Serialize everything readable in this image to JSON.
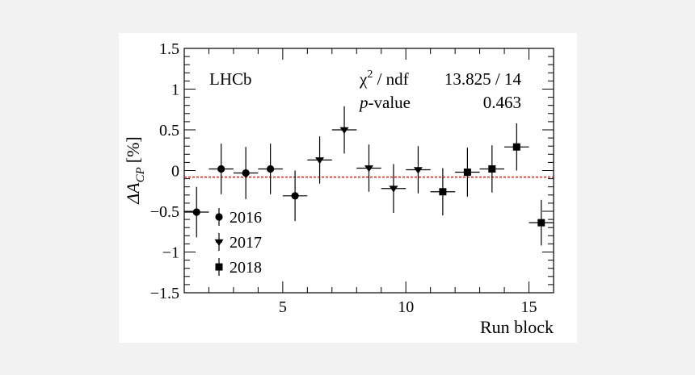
{
  "chart_data": {
    "type": "scatter",
    "title": "",
    "xlabel": "Run block",
    "ylabel": {
      "prefix": "ΔA",
      "subscript": "CP",
      "unit": "[%]"
    },
    "xlim": [
      1,
      16
    ],
    "ylim": [
      -1.5,
      1.5
    ],
    "x_ticks": [
      5,
      10,
      15
    ],
    "y_ticks": [
      -1.5,
      -1,
      -0.5,
      0,
      0.5,
      1,
      1.5
    ],
    "y_tick_labels": [
      "−1.5",
      "−1",
      "−0.5",
      "0",
      "0.5",
      "1",
      "1.5"
    ],
    "reference_line": {
      "y": -0.08,
      "style": "dashed",
      "color": "#d40000"
    },
    "series": [
      {
        "name": "2016",
        "marker": "circle",
        "x": [
          1.5,
          2.5,
          3.5,
          4.5,
          5.5
        ],
        "y": [
          -0.51,
          0.02,
          -0.03,
          0.02,
          -0.31
        ],
        "yerr": [
          0.31,
          0.31,
          0.32,
          0.31,
          0.31
        ]
      },
      {
        "name": "2017",
        "marker": "triangle-down",
        "x": [
          6.5,
          7.5,
          8.5,
          9.5,
          10.5
        ],
        "y": [
          0.13,
          0.5,
          0.03,
          -0.22,
          0.01
        ],
        "yerr": [
          0.29,
          0.29,
          0.29,
          0.3,
          0.29
        ]
      },
      {
        "name": "2018",
        "marker": "square",
        "x": [
          11.5,
          12.5,
          13.5,
          14.5,
          15.5
        ],
        "y": [
          -0.26,
          -0.02,
          0.02,
          0.29,
          -0.64
        ],
        "yerr": [
          0.29,
          0.3,
          0.29,
          0.29,
          0.28
        ]
      }
    ],
    "xerr": 0.5,
    "legend_position": "bottom-left",
    "annotations": {
      "experiment": "LHCb",
      "chi2_label": "χ",
      "chi2_sup": "2",
      "chi2_rest": " / ndf",
      "chi2_value": "13.825 / 14",
      "pvalue_label_italic": "p",
      "pvalue_label_rest": "-value",
      "pvalue_value": "0.463"
    }
  }
}
